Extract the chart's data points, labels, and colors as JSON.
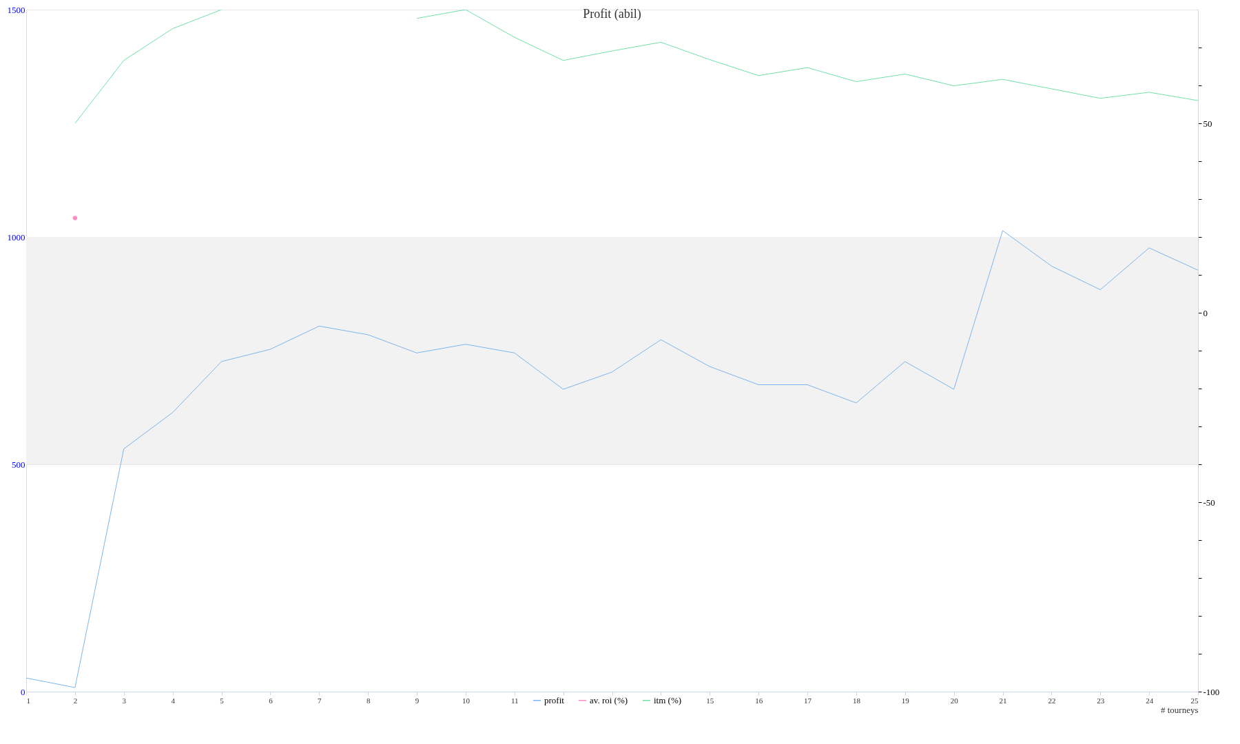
{
  "chart_data": {
    "type": "line",
    "title": "Profit  (abil)",
    "xlabel": "# tourneys",
    "x": [
      1,
      2,
      3,
      4,
      5,
      6,
      7,
      8,
      9,
      10,
      11,
      12,
      13,
      14,
      15,
      16,
      17,
      18,
      19,
      20,
      21,
      22,
      23,
      24,
      25
    ],
    "series": [
      {
        "name": "profit",
        "color": "#7cb5ec",
        "values": [
          30,
          9,
          534,
          614,
          726,
          753,
          804,
          785,
          745,
          764,
          745,
          665,
          703,
          774,
          715,
          675,
          675,
          635,
          726,
          665,
          1014,
          936,
          884,
          976,
          927
        ]
      },
      {
        "name": "av. roi (%)",
        "color": "#f78fc4",
        "axis": "y2",
        "values": [
          null,
          25,
          null,
          null,
          null,
          null,
          null,
          null,
          null,
          null,
          null,
          null,
          null,
          null,
          null,
          null,
          null,
          null,
          null,
          null,
          null,
          null,
          null,
          null,
          null
        ]
      },
      {
        "name": "itm (%)",
        "color": "#70e0a8",
        "axis": "y2",
        "values": [
          null,
          50,
          66.6,
          75,
          80,
          null,
          null,
          null,
          77.7,
          80,
          72.7,
          66.6,
          69.1,
          71.4,
          66.8,
          62.6,
          64.7,
          61,
          63,
          59.9,
          61.6,
          59.1,
          56.6,
          58.2,
          56
        ]
      }
    ],
    "xlim": [
      1,
      25
    ],
    "xticks": [
      1,
      2,
      3,
      4,
      5,
      6,
      7,
      8,
      9,
      10,
      11,
      {
        "value": 12,
        "label": null
      },
      {
        "value": 13,
        "label": null
      },
      {
        "value": 14,
        "label": null
      },
      15,
      16,
      17,
      18,
      19,
      20,
      21,
      22,
      23,
      24,
      25
    ],
    "ylim": [
      0,
      1500
    ],
    "yticks": [
      0,
      500,
      1000,
      1500
    ],
    "y2lim": [
      -100,
      80
    ],
    "y2ticks": [
      -100,
      {
        "value": -90,
        "label": null
      },
      {
        "value": -80,
        "label": null
      },
      {
        "value": -70,
        "label": null
      },
      {
        "value": -60,
        "label": null
      },
      -50,
      {
        "value": -40,
        "label": null
      },
      {
        "value": -30,
        "label": null
      },
      {
        "value": -20,
        "label": null
      },
      {
        "value": -10,
        "label": null
      },
      0,
      {
        "value": 10,
        "label": null
      },
      {
        "value": 20,
        "label": null
      },
      {
        "value": 30,
        "label": null
      },
      {
        "value": 40,
        "label": null
      },
      50,
      {
        "value": 60,
        "label": null
      },
      {
        "value": 70,
        "label": null
      }
    ],
    "bands": [
      {
        "axis": "y",
        "from": 500,
        "to": 1000,
        "color": "#f2f2f2"
      }
    ],
    "grid": "y",
    "legend": "bottom",
    "marker": "none",
    "line_style": "solid"
  }
}
